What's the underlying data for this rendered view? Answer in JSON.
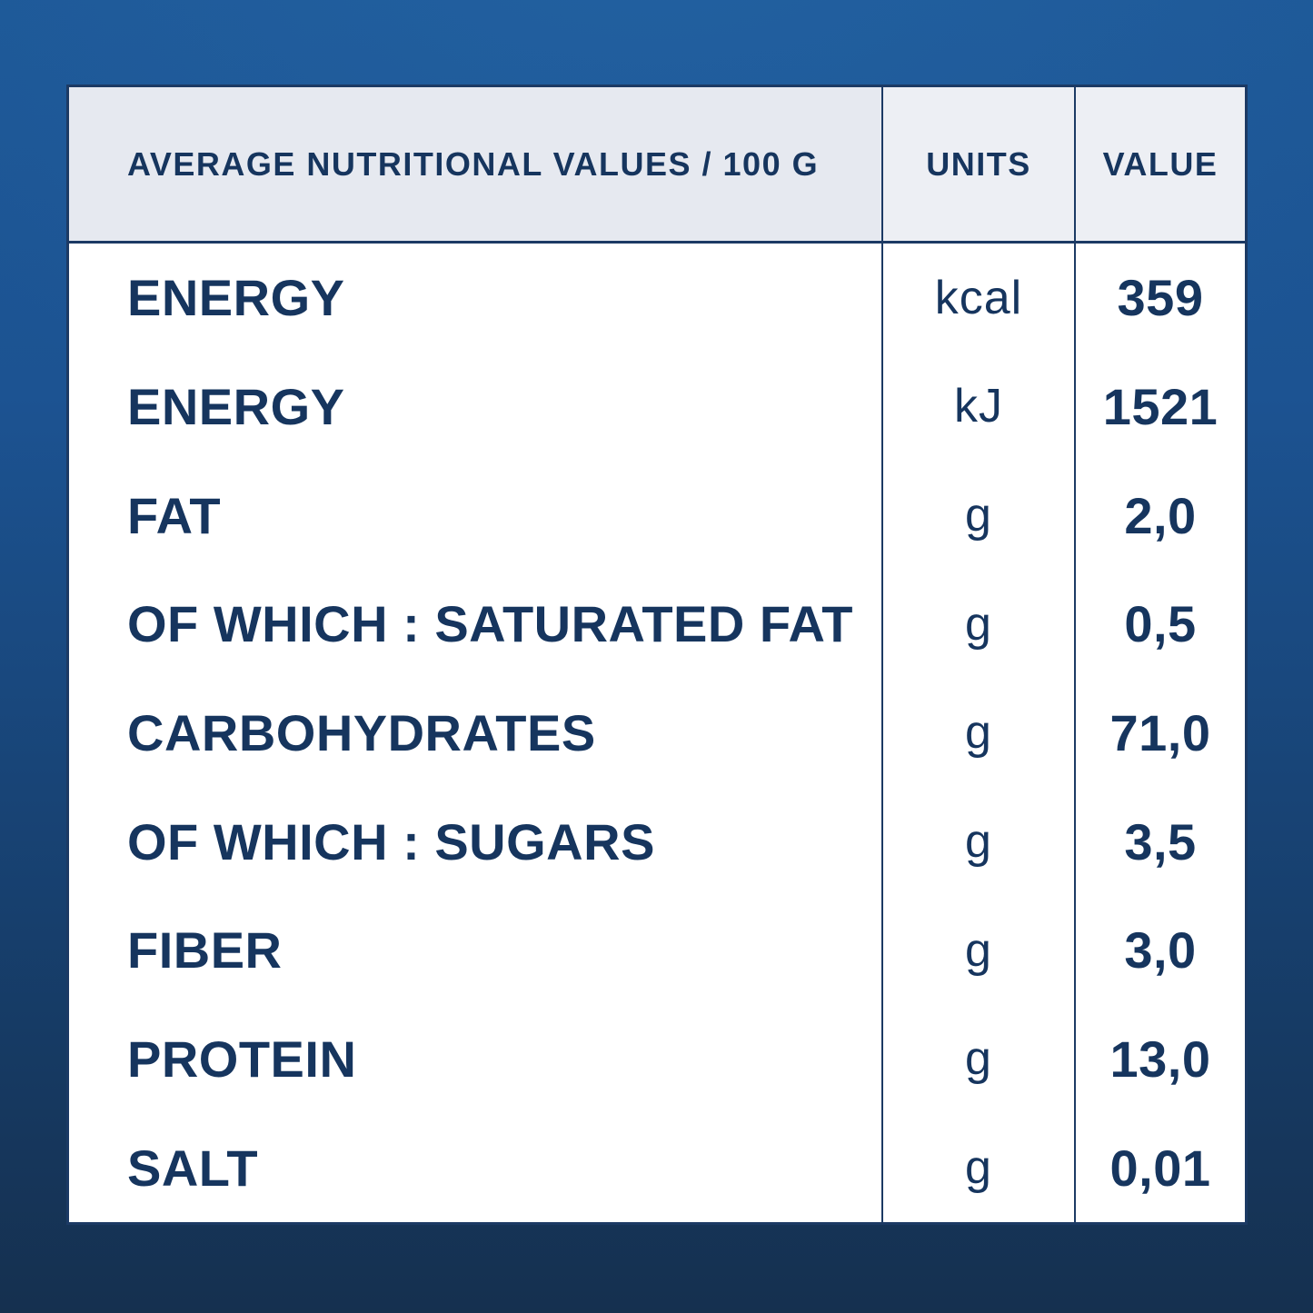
{
  "colors": {
    "background_top": "#1d5796",
    "background_bottom": "#15304f",
    "text_navy": "#16355e",
    "grid_line": "#1c3a64",
    "header_bg_left": "#e6e9f0",
    "header_bg_right": "#edeff4",
    "body_bg": "#ffffff"
  },
  "table": {
    "headers": {
      "nutrient": "AVERAGE NUTRITIONAL VALUES / 100 G",
      "units": "UNITS",
      "value": "VALUE"
    },
    "rows": [
      {
        "label": "ENERGY",
        "unit": "kcal",
        "value": "359"
      },
      {
        "label": "ENERGY",
        "unit": "kJ",
        "value": "1521"
      },
      {
        "label": "FAT",
        "unit": "g",
        "value": "2,0"
      },
      {
        "label": "OF WHICH : SATURATED FAT",
        "unit": "g",
        "value": "0,5"
      },
      {
        "label": "CARBOHYDRATES",
        "unit": "g",
        "value": "71,0"
      },
      {
        "label": "OF WHICH : SUGARS",
        "unit": "g",
        "value": "3,5"
      },
      {
        "label": "FIBER",
        "unit": "g",
        "value": "3,0"
      },
      {
        "label": "PROTEIN",
        "unit": "g",
        "value": "13,0"
      },
      {
        "label": "SALT",
        "unit": "g",
        "value": "0,01"
      }
    ]
  },
  "chart_data": {
    "type": "table",
    "title": "AVERAGE NUTRITIONAL VALUES / 100 G",
    "columns": [
      "AVERAGE NUTRITIONAL VALUES / 100 G",
      "UNITS",
      "VALUE"
    ],
    "rows": [
      [
        "ENERGY",
        "kcal",
        "359"
      ],
      [
        "ENERGY",
        "kJ",
        "1521"
      ],
      [
        "FAT",
        "g",
        "2,0"
      ],
      [
        "OF WHICH : SATURATED FAT",
        "g",
        "0,5"
      ],
      [
        "CARBOHYDRATES",
        "g",
        "71,0"
      ],
      [
        "OF WHICH : SUGARS",
        "g",
        "3,5"
      ],
      [
        "FIBER",
        "g",
        "3,0"
      ],
      [
        "PROTEIN",
        "g",
        "13,0"
      ],
      [
        "SALT",
        "g",
        "0,01"
      ]
    ]
  }
}
